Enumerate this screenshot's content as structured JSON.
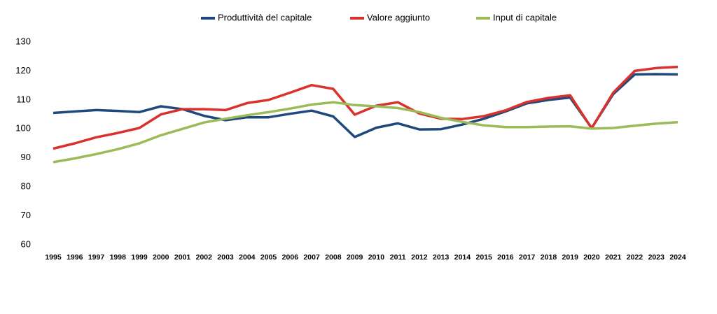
{
  "chart_data": {
    "type": "line",
    "categories": [
      "1995",
      "1996",
      "1997",
      "1998",
      "1999",
      "2000",
      "2001",
      "2002",
      "2003",
      "2004",
      "2005",
      "2006",
      "2007",
      "2008",
      "2009",
      "2010",
      "2011",
      "2012",
      "2013",
      "2014",
      "2015",
      "2016",
      "2017",
      "2018",
      "2019",
      "2020",
      "2021",
      "2022",
      "2023",
      "2024"
    ],
    "series": [
      {
        "name": "Produttività del capitale",
        "color": "#1f497d",
        "values": [
          105.5,
          106,
          106.5,
          106.2,
          105.8,
          107.8,
          106.8,
          104.5,
          103,
          104,
          104,
          105.2,
          106.3,
          104.3,
          97.2,
          100.4,
          101.9,
          99.8,
          99.9,
          101.5,
          103.5,
          106,
          108.8,
          110,
          110.8,
          100.3,
          112,
          118.8,
          118.9,
          118.8
        ]
      },
      {
        "name": "Valore aggiunto",
        "color": "#d9312b",
        "values": [
          93.2,
          95,
          97.1,
          98.6,
          100.3,
          105,
          106.8,
          106.8,
          106.5,
          108.9,
          110,
          112.5,
          115.1,
          113.8,
          104.9,
          108,
          109.2,
          105.3,
          103.5,
          103.4,
          104.4,
          106.4,
          109.3,
          110.7,
          111.6,
          100.2,
          112.5,
          120,
          121,
          121.4
        ]
      },
      {
        "name": "Input di capitale",
        "color": "#9bbb59",
        "values": [
          88.5,
          89.8,
          91.3,
          93,
          95,
          97.8,
          100,
          102.2,
          103.5,
          104.7,
          105.8,
          107,
          108.4,
          109.2,
          108.2,
          107.8,
          107.2,
          105.8,
          103.8,
          102.4,
          101.2,
          100.6,
          100.6,
          100.8,
          100.9,
          100.1,
          100.3,
          101.1,
          101.8,
          102.3
        ]
      }
    ],
    "ylim": [
      60,
      130
    ],
    "yticks": [
      60,
      70,
      80,
      90,
      100,
      110,
      120,
      130
    ],
    "grid": false,
    "legend": "top"
  }
}
